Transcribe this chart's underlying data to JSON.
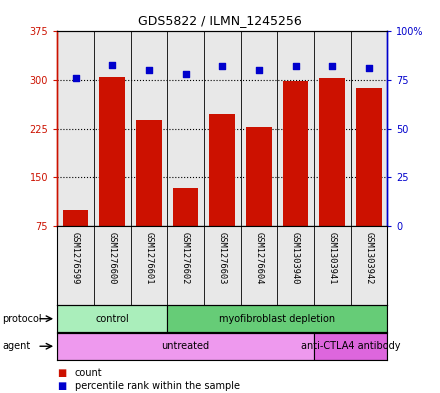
{
  "title": "GDS5822 / ILMN_1245256",
  "samples": [
    "GSM1276599",
    "GSM1276600",
    "GSM1276601",
    "GSM1276602",
    "GSM1276603",
    "GSM1276604",
    "GSM1303940",
    "GSM1303941",
    "GSM1303942"
  ],
  "counts": [
    100,
    305,
    238,
    133,
    248,
    228,
    298,
    303,
    288
  ],
  "percentiles": [
    76,
    83,
    80,
    78,
    82,
    80,
    82,
    82,
    81
  ],
  "ylim_left": [
    75,
    375
  ],
  "ylim_right": [
    0,
    100
  ],
  "yticks_left": [
    75,
    150,
    225,
    300,
    375
  ],
  "yticks_right": [
    0,
    25,
    50,
    75,
    100
  ],
  "protocol_groups": [
    {
      "label": "control",
      "span": [
        0,
        3
      ],
      "color": "#aaeebb"
    },
    {
      "label": "myofibroblast depletion",
      "span": [
        3,
        9
      ],
      "color": "#66cc77"
    }
  ],
  "agent_groups": [
    {
      "label": "untreated",
      "span": [
        0,
        7
      ],
      "color": "#ee99ee"
    },
    {
      "label": "anti-CTLA4 antibody",
      "span": [
        7,
        9
      ],
      "color": "#dd66dd"
    }
  ],
  "bar_color": "#cc1100",
  "dot_color": "#0000cc",
  "left_axis_color": "#cc1100",
  "right_axis_color": "#0000cc",
  "bg_color": "#e8e8e8",
  "legend_items": [
    {
      "label": "count",
      "color": "#cc1100"
    },
    {
      "label": "percentile rank within the sample",
      "color": "#0000cc"
    }
  ]
}
